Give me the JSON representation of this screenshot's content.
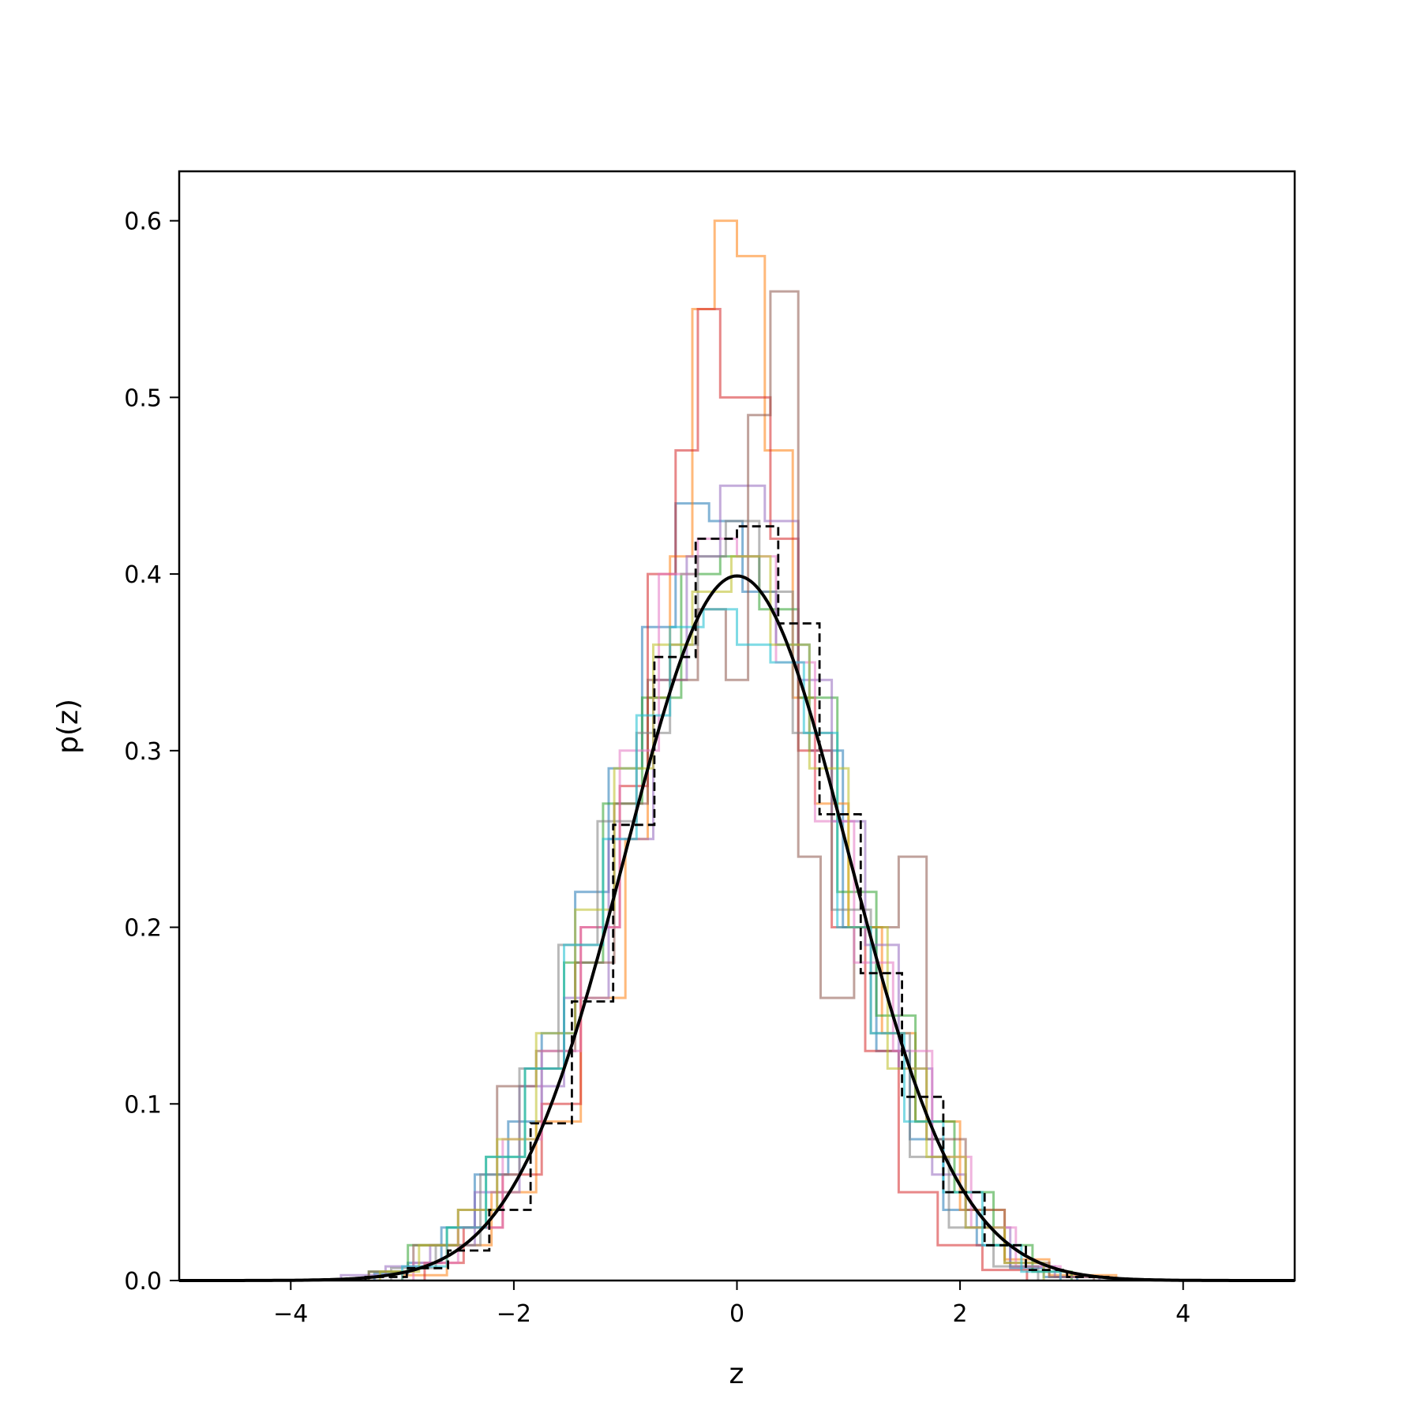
{
  "chart_data": {
    "type": "step",
    "title": "",
    "xlabel": "z",
    "ylabel": "p(z)",
    "xlim": [
      -5,
      5
    ],
    "ylim": [
      0,
      0.628
    ],
    "xticks": [
      -4,
      -2,
      0,
      2,
      4
    ],
    "xtick_labels": [
      "−4",
      "−2",
      "0",
      "2",
      "4"
    ],
    "yticks": [
      0.0,
      0.1,
      0.2,
      0.3,
      0.4,
      0.5,
      0.6
    ],
    "ytick_labels": [
      "0.0",
      "0.1",
      "0.2",
      "0.3",
      "0.4",
      "0.5",
      "0.6"
    ],
    "grid": false,
    "legend": "none",
    "curve": {
      "type": "line",
      "function": "standard normal pdf",
      "mean": 0,
      "std": 1,
      "color": "#000000"
    },
    "reference_histogram": {
      "style": "dashed",
      "color": "#000000",
      "bins": [
        [
          -3.33,
          -2.96,
          0.002
        ],
        [
          -2.96,
          -2.59,
          0.007
        ],
        [
          -2.59,
          -2.22,
          0.017
        ],
        [
          -2.22,
          -1.85,
          0.04
        ],
        [
          -1.85,
          -1.48,
          0.089
        ],
        [
          -1.48,
          -1.11,
          0.158
        ],
        [
          -1.11,
          -0.74,
          0.258
        ],
        [
          -0.74,
          -0.37,
          0.353
        ],
        [
          -0.37,
          0.0,
          0.42
        ],
        [
          0.0,
          0.37,
          0.427
        ],
        [
          0.37,
          0.74,
          0.372
        ],
        [
          0.74,
          1.11,
          0.264
        ],
        [
          1.11,
          1.48,
          0.174
        ],
        [
          1.48,
          1.85,
          0.104
        ],
        [
          1.85,
          2.22,
          0.05
        ],
        [
          2.22,
          2.59,
          0.02
        ],
        [
          2.59,
          2.96,
          0.006
        ],
        [
          2.96,
          3.33,
          0.002
        ]
      ]
    },
    "series": [
      {
        "color": "#1f77b4",
        "bins": [
          [
            -3.25,
            -2.95,
            0.004
          ],
          [
            -2.95,
            -2.65,
            0.01
          ],
          [
            -2.65,
            -2.35,
            0.03
          ],
          [
            -2.35,
            -2.05,
            0.06
          ],
          [
            -2.05,
            -1.75,
            0.09
          ],
          [
            -1.75,
            -1.45,
            0.14
          ],
          [
            -1.45,
            -1.15,
            0.22
          ],
          [
            -1.15,
            -0.85,
            0.29
          ],
          [
            -0.85,
            -0.55,
            0.37
          ],
          [
            -0.55,
            -0.25,
            0.44
          ],
          [
            -0.25,
            0.05,
            0.43
          ],
          [
            0.05,
            0.35,
            0.39
          ],
          [
            0.35,
            0.65,
            0.36
          ],
          [
            0.65,
            0.95,
            0.3
          ],
          [
            0.95,
            1.25,
            0.2
          ],
          [
            1.25,
            1.55,
            0.13
          ],
          [
            1.55,
            1.85,
            0.08
          ],
          [
            1.85,
            2.15,
            0.04
          ],
          [
            2.15,
            2.45,
            0.02
          ],
          [
            2.45,
            2.75,
            0.007
          ],
          [
            2.75,
            3.05,
            0.002
          ]
        ]
      },
      {
        "color": "#ff7f0e",
        "bins": [
          [
            -3.0,
            -2.6,
            0.003
          ],
          [
            -2.6,
            -2.2,
            0.02
          ],
          [
            -2.2,
            -1.8,
            0.05
          ],
          [
            -1.8,
            -1.4,
            0.09
          ],
          [
            -1.4,
            -1.0,
            0.16
          ],
          [
            -1.0,
            -0.8,
            0.25
          ],
          [
            -0.8,
            -0.6,
            0.33
          ],
          [
            -0.6,
            -0.4,
            0.41
          ],
          [
            -0.4,
            -0.2,
            0.55
          ],
          [
            -0.2,
            0.0,
            0.6
          ],
          [
            0.0,
            0.25,
            0.58
          ],
          [
            0.25,
            0.5,
            0.47
          ],
          [
            0.5,
            0.7,
            0.33
          ],
          [
            0.7,
            1.0,
            0.27
          ],
          [
            1.0,
            1.3,
            0.2
          ],
          [
            1.3,
            1.6,
            0.14
          ],
          [
            1.6,
            2.0,
            0.09
          ],
          [
            2.0,
            2.4,
            0.04
          ],
          [
            2.4,
            2.8,
            0.012
          ],
          [
            2.8,
            3.4,
            0.003
          ]
        ]
      },
      {
        "color": "#2ca02c",
        "bins": [
          [
            -3.3,
            -2.95,
            0.005
          ],
          [
            -2.95,
            -2.6,
            0.02
          ],
          [
            -2.6,
            -2.25,
            0.03
          ],
          [
            -2.25,
            -1.9,
            0.07
          ],
          [
            -1.9,
            -1.55,
            0.12
          ],
          [
            -1.55,
            -1.2,
            0.18
          ],
          [
            -1.2,
            -0.85,
            0.27
          ],
          [
            -0.85,
            -0.5,
            0.33
          ],
          [
            -0.5,
            -0.15,
            0.4
          ],
          [
            -0.15,
            0.2,
            0.41
          ],
          [
            0.2,
            0.55,
            0.38
          ],
          [
            0.55,
            0.9,
            0.33
          ],
          [
            0.9,
            1.25,
            0.22
          ],
          [
            1.25,
            1.6,
            0.15
          ],
          [
            1.6,
            1.95,
            0.09
          ],
          [
            1.95,
            2.3,
            0.05
          ],
          [
            2.3,
            2.65,
            0.02
          ],
          [
            2.65,
            3.0,
            0.005
          ]
        ]
      },
      {
        "color": "#d62728",
        "bins": [
          [
            -2.8,
            -2.45,
            0.01
          ],
          [
            -2.45,
            -2.1,
            0.03
          ],
          [
            -2.1,
            -1.75,
            0.06
          ],
          [
            -1.75,
            -1.4,
            0.1
          ],
          [
            -1.4,
            -1.05,
            0.2
          ],
          [
            -1.05,
            -0.8,
            0.28
          ],
          [
            -0.8,
            -0.55,
            0.4
          ],
          [
            -0.55,
            -0.35,
            0.47
          ],
          [
            -0.35,
            -0.15,
            0.55
          ],
          [
            -0.15,
            0.3,
            0.5
          ],
          [
            0.3,
            0.55,
            0.42
          ],
          [
            0.55,
            0.85,
            0.3
          ],
          [
            0.85,
            1.15,
            0.2
          ],
          [
            1.15,
            1.45,
            0.13
          ],
          [
            1.45,
            1.8,
            0.05
          ],
          [
            1.8,
            2.2,
            0.02
          ],
          [
            2.2,
            2.6,
            0.006
          ]
        ]
      },
      {
        "color": "#9467bd",
        "bins": [
          [
            -3.55,
            -3.15,
            0.003
          ],
          [
            -3.15,
            -2.75,
            0.008
          ],
          [
            -2.75,
            -2.35,
            0.02
          ],
          [
            -2.35,
            -1.95,
            0.05
          ],
          [
            -1.95,
            -1.55,
            0.11
          ],
          [
            -1.55,
            -1.15,
            0.16
          ],
          [
            -1.15,
            -0.75,
            0.25
          ],
          [
            -0.75,
            -0.45,
            0.34
          ],
          [
            -0.45,
            -0.15,
            0.41
          ],
          [
            -0.15,
            0.25,
            0.45
          ],
          [
            0.25,
            0.55,
            0.43
          ],
          [
            0.55,
            0.85,
            0.34
          ],
          [
            0.85,
            1.15,
            0.26
          ],
          [
            1.15,
            1.45,
            0.19
          ],
          [
            1.45,
            1.75,
            0.12
          ],
          [
            1.75,
            2.05,
            0.06
          ],
          [
            2.05,
            2.45,
            0.03
          ],
          [
            2.45,
            2.85,
            0.008
          ],
          [
            2.85,
            3.25,
            0.002
          ]
        ]
      },
      {
        "color": "#8c564b",
        "bins": [
          [
            -3.3,
            -2.9,
            0.005
          ],
          [
            -2.9,
            -2.5,
            0.02
          ],
          [
            -2.5,
            -2.15,
            0.04
          ],
          [
            -2.15,
            -1.8,
            0.11
          ],
          [
            -1.8,
            -1.45,
            0.13
          ],
          [
            -1.45,
            -1.1,
            0.18
          ],
          [
            -1.1,
            -0.8,
            0.27
          ],
          [
            -0.8,
            -0.35,
            0.34
          ],
          [
            -0.35,
            -0.1,
            0.38
          ],
          [
            -0.1,
            0.1,
            0.34
          ],
          [
            0.1,
            0.3,
            0.49
          ],
          [
            0.3,
            0.55,
            0.56
          ],
          [
            0.55,
            0.75,
            0.24
          ],
          [
            0.75,
            1.05,
            0.16
          ],
          [
            1.05,
            1.45,
            0.2
          ],
          [
            1.45,
            1.7,
            0.24
          ],
          [
            1.7,
            2.05,
            0.08
          ],
          [
            2.05,
            2.4,
            0.04
          ],
          [
            2.4,
            2.8,
            0.01
          ],
          [
            2.8,
            3.2,
            0.002
          ]
        ]
      },
      {
        "color": "#e377c2",
        "bins": [
          [
            -2.9,
            -2.5,
            0.01
          ],
          [
            -2.5,
            -2.1,
            0.03
          ],
          [
            -2.1,
            -1.75,
            0.08
          ],
          [
            -1.75,
            -1.4,
            0.13
          ],
          [
            -1.4,
            -1.05,
            0.2
          ],
          [
            -1.05,
            -0.7,
            0.3
          ],
          [
            -0.7,
            -0.35,
            0.4
          ],
          [
            -0.35,
            0.0,
            0.42
          ],
          [
            0.0,
            0.35,
            0.41
          ],
          [
            0.35,
            0.7,
            0.35
          ],
          [
            0.7,
            1.05,
            0.26
          ],
          [
            1.05,
            1.4,
            0.18
          ],
          [
            1.4,
            1.75,
            0.13
          ],
          [
            1.75,
            2.1,
            0.07
          ],
          [
            2.1,
            2.5,
            0.03
          ],
          [
            2.5,
            2.9,
            0.008
          ]
        ]
      },
      {
        "color": "#7f7f7f",
        "bins": [
          [
            -3.1,
            -2.7,
            0.007
          ],
          [
            -2.7,
            -2.3,
            0.02
          ],
          [
            -2.3,
            -1.95,
            0.06
          ],
          [
            -1.95,
            -1.6,
            0.12
          ],
          [
            -1.6,
            -1.25,
            0.19
          ],
          [
            -1.25,
            -0.9,
            0.26
          ],
          [
            -0.9,
            -0.6,
            0.31
          ],
          [
            -0.6,
            -0.35,
            0.36
          ],
          [
            -0.35,
            -0.1,
            0.41
          ],
          [
            -0.1,
            0.2,
            0.43
          ],
          [
            0.2,
            0.5,
            0.39
          ],
          [
            0.5,
            0.85,
            0.31
          ],
          [
            0.85,
            1.2,
            0.21
          ],
          [
            1.2,
            1.55,
            0.14
          ],
          [
            1.55,
            1.9,
            0.07
          ],
          [
            1.9,
            2.3,
            0.03
          ],
          [
            2.3,
            2.7,
            0.008
          ]
        ]
      },
      {
        "color": "#bcbd22",
        "bins": [
          [
            -3.2,
            -2.85,
            0.005
          ],
          [
            -2.85,
            -2.5,
            0.02
          ],
          [
            -2.5,
            -2.15,
            0.04
          ],
          [
            -2.15,
            -1.8,
            0.08
          ],
          [
            -1.8,
            -1.45,
            0.14
          ],
          [
            -1.45,
            -1.1,
            0.21
          ],
          [
            -1.1,
            -0.75,
            0.29
          ],
          [
            -0.75,
            -0.4,
            0.36
          ],
          [
            -0.4,
            -0.05,
            0.39
          ],
          [
            -0.05,
            0.3,
            0.41
          ],
          [
            0.3,
            0.65,
            0.36
          ],
          [
            0.65,
            1.0,
            0.29
          ],
          [
            1.0,
            1.35,
            0.2
          ],
          [
            1.35,
            1.7,
            0.12
          ],
          [
            1.7,
            2.05,
            0.07
          ],
          [
            2.05,
            2.4,
            0.03
          ],
          [
            2.4,
            2.75,
            0.01
          ]
        ]
      },
      {
        "color": "#17becf",
        "bins": [
          [
            -3.0,
            -2.6,
            0.008
          ],
          [
            -2.6,
            -2.25,
            0.03
          ],
          [
            -2.25,
            -1.9,
            0.07
          ],
          [
            -1.9,
            -1.55,
            0.12
          ],
          [
            -1.55,
            -1.2,
            0.19
          ],
          [
            -1.2,
            -0.9,
            0.25
          ],
          [
            -0.9,
            -0.6,
            0.32
          ],
          [
            -0.6,
            -0.3,
            0.37
          ],
          [
            -0.3,
            0.0,
            0.38
          ],
          [
            0.0,
            0.3,
            0.36
          ],
          [
            0.3,
            0.6,
            0.35
          ],
          [
            0.6,
            0.9,
            0.31
          ],
          [
            0.9,
            1.2,
            0.2
          ],
          [
            1.2,
            1.5,
            0.14
          ],
          [
            1.5,
            1.85,
            0.09
          ],
          [
            1.85,
            2.2,
            0.05
          ],
          [
            2.2,
            2.55,
            0.02
          ],
          [
            2.55,
            2.9,
            0.005
          ]
        ]
      }
    ]
  }
}
